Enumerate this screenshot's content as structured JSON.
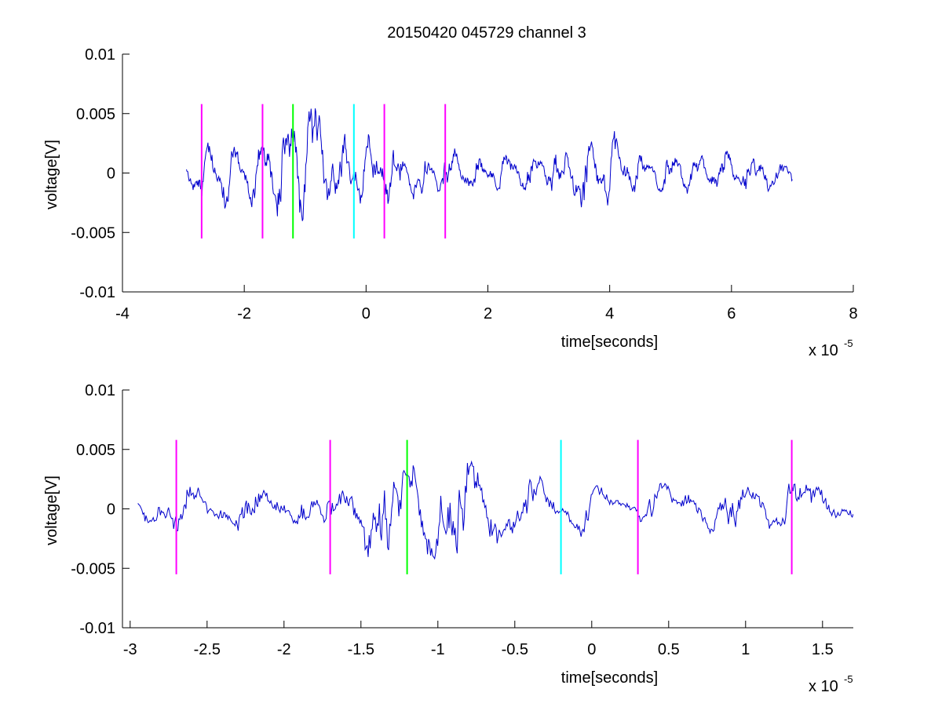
{
  "figure": {
    "title": "20150420 045729 channel 3"
  },
  "colors": {
    "signal": "#0000cc",
    "magenta": "#ff00ff",
    "green": "#00ff00",
    "cyan": "#00ffff",
    "axes": "#000000"
  },
  "chart_data": [
    {
      "type": "line",
      "title": "20150420 045729 channel 3",
      "xlabel": "time[seconds]",
      "ylabel": "voltage[V]",
      "x_multiplier": "x 10",
      "x_multiplier_exponent": "-5",
      "xlim": [
        -4,
        8
      ],
      "ylim": [
        -0.01,
        0.01
      ],
      "x_ticks": [
        -4,
        -2,
        0,
        2,
        4,
        6,
        8
      ],
      "x_tick_labels": [
        "-4",
        "-2",
        "0",
        "2",
        "4",
        "6",
        "8"
      ],
      "y_ticks": [
        -0.01,
        -0.005,
        0,
        0.005,
        0.01
      ],
      "y_tick_labels": [
        "-0.01",
        "-0.005",
        "0",
        "0.005",
        "0.01"
      ],
      "grid": false,
      "series": [
        {
          "color": "#0000cc",
          "x_range": [
            -2.95,
            7.0
          ],
          "amplitude_envelope": [
            [
              -2.95,
              0.0015
            ],
            [
              -2.6,
              0.0022
            ],
            [
              -1.8,
              0.0025
            ],
            [
              -1.3,
              0.0045
            ],
            [
              -0.9,
              0.005
            ],
            [
              -0.5,
              0.003
            ],
            [
              0.0,
              0.0025
            ],
            [
              1.0,
              0.002
            ],
            [
              2.0,
              0.0012
            ],
            [
              3.0,
              0.0018
            ],
            [
              3.8,
              0.0028
            ],
            [
              4.5,
              0.0015
            ],
            [
              5.5,
              0.0015
            ],
            [
              6.5,
              0.0018
            ],
            [
              7.0,
              0.001
            ]
          ]
        }
      ],
      "markers": [
        {
          "x": -2.7,
          "y_min": -0.0055,
          "y_max": 0.0058,
          "color": "#ff00ff"
        },
        {
          "x": -1.7,
          "y_min": -0.0055,
          "y_max": 0.0058,
          "color": "#ff00ff"
        },
        {
          "x": -1.2,
          "y_min": -0.0055,
          "y_max": 0.0058,
          "color": "#00ff00"
        },
        {
          "x": -0.2,
          "y_min": -0.0055,
          "y_max": 0.0058,
          "color": "#00ffff"
        },
        {
          "x": 0.3,
          "y_min": -0.0055,
          "y_max": 0.0058,
          "color": "#ff00ff"
        },
        {
          "x": 1.3,
          "y_min": -0.0055,
          "y_max": 0.0058,
          "color": "#ff00ff"
        }
      ]
    },
    {
      "type": "line",
      "title": "",
      "xlabel": "time[seconds]",
      "ylabel": "voltage[V]",
      "x_multiplier": "x 10",
      "x_multiplier_exponent": "-5",
      "xlim": [
        -3.05,
        1.7
      ],
      "ylim": [
        -0.01,
        0.01
      ],
      "x_ticks": [
        -3,
        -2.5,
        -2,
        -1.5,
        -1,
        -0.5,
        0,
        0.5,
        1,
        1.5
      ],
      "x_tick_labels": [
        "-3",
        "-2.5",
        "-2",
        "-1.5",
        "-1",
        "-0.5",
        "0",
        "0.5",
        "1",
        "1.5"
      ],
      "y_ticks": [
        -0.01,
        -0.005,
        0,
        0.005,
        0.01
      ],
      "y_tick_labels": [
        "-0.01",
        "-0.005",
        "0",
        "0.005",
        "0.01"
      ],
      "grid": false,
      "series": [
        {
          "color": "#0000cc",
          "x_range": [
            -2.95,
            1.7
          ],
          "amplitude_envelope": [
            [
              -2.95,
              0.0015
            ],
            [
              -2.6,
              0.002
            ],
            [
              -2.2,
              0.0018
            ],
            [
              -1.8,
              0.0015
            ],
            [
              -1.5,
              0.003
            ],
            [
              -1.35,
              0.0048
            ],
            [
              -1.0,
              0.0042
            ],
            [
              -0.7,
              0.0045
            ],
            [
              -0.5,
              0.0025
            ],
            [
              -0.2,
              0.0018
            ],
            [
              0.3,
              0.0015
            ],
            [
              0.9,
              0.0018
            ],
            [
              1.3,
              0.0025
            ],
            [
              1.7,
              0.001
            ]
          ]
        }
      ],
      "markers": [
        {
          "x": -2.7,
          "y_min": -0.0055,
          "y_max": 0.0058,
          "color": "#ff00ff"
        },
        {
          "x": -1.7,
          "y_min": -0.0055,
          "y_max": 0.0058,
          "color": "#ff00ff"
        },
        {
          "x": -1.2,
          "y_min": -0.0055,
          "y_max": 0.0058,
          "color": "#00ff00"
        },
        {
          "x": -0.2,
          "y_min": -0.0055,
          "y_max": 0.0058,
          "color": "#00ffff"
        },
        {
          "x": 0.3,
          "y_min": -0.0055,
          "y_max": 0.0058,
          "color": "#ff00ff"
        },
        {
          "x": 1.3,
          "y_min": -0.0055,
          "y_max": 0.0058,
          "color": "#ff00ff"
        }
      ]
    }
  ]
}
